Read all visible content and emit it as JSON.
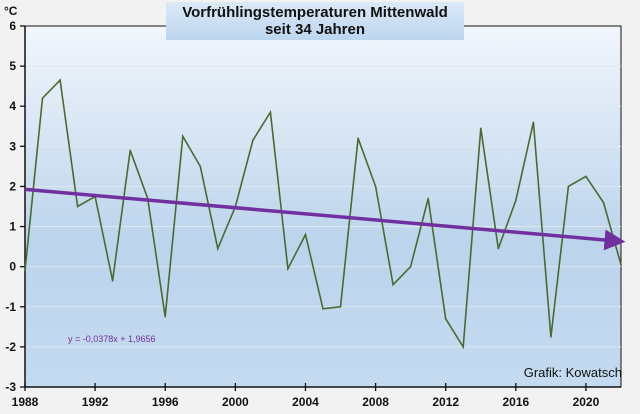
{
  "chart_data": {
    "type": "line",
    "title": "Vorfrühlingstemperaturen Mittenwald",
    "subtitle": "seit 34 Jahren",
    "ylabel": "°C",
    "xlabel": "",
    "ylim": [
      -3,
      6
    ],
    "xlim": [
      1988,
      2022
    ],
    "yticks": [
      6,
      5,
      4,
      3,
      2,
      1,
      0,
      -1,
      -2,
      -3
    ],
    "xticks": [
      1988,
      1992,
      1996,
      2000,
      2004,
      2008,
      2012,
      2016,
      2020
    ],
    "grid": true,
    "legend": "none",
    "series": [
      {
        "name": "Temperatur",
        "color": "#4a6b2f",
        "x": [
          1988,
          1989,
          1990,
          1991,
          1992,
          1993,
          1994,
          1995,
          1996,
          1997,
          1998,
          1999,
          2000,
          2001,
          2002,
          2003,
          2004,
          2005,
          2006,
          2007,
          2008,
          2009,
          2010,
          2011,
          2012,
          2013,
          2014,
          2015,
          2016,
          2017,
          2018,
          2019,
          2020,
          2021,
          2022
        ],
        "values": [
          -0.1,
          4.2,
          4.65,
          1.5,
          1.75,
          -0.35,
          2.9,
          1.7,
          -1.25,
          3.25,
          2.5,
          0.45,
          1.5,
          3.15,
          3.85,
          -0.05,
          0.8,
          -1.05,
          -1.0,
          3.2,
          2.0,
          -0.45,
          0.0,
          1.7,
          -1.3,
          -2.0,
          3.45,
          0.45,
          1.65,
          3.6,
          -1.75,
          2.0,
          2.25,
          1.6,
          0.05
        ]
      }
    ],
    "trendline": {
      "name": "Trend",
      "color": "#7030a0",
      "equation": "y = -0,0378x + 1,9656",
      "slope": -0.0378,
      "intercept": 1.9656
    },
    "annotations": [
      "Grafik: Kowatsch"
    ]
  }
}
